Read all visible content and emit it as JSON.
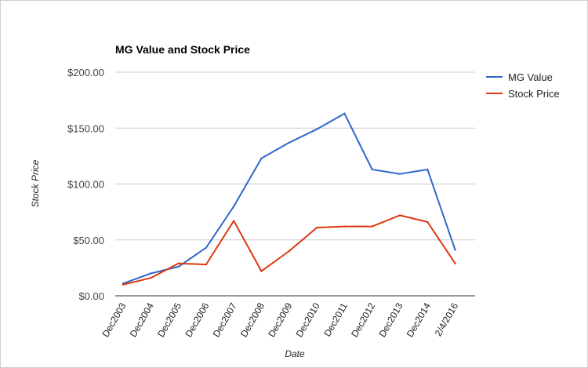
{
  "chart_data": {
    "type": "line",
    "title": "MG Value and Stock Price",
    "xlabel": "Date",
    "ylabel": "Stock Price",
    "categories": [
      "Dec2003",
      "Dec2004",
      "Dec2005",
      "Dec2006",
      "Dec2007",
      "Dec2008",
      "Dec2009",
      "Dec2010",
      "Dec2011",
      "Dec2012",
      "Dec2013",
      "Dec2014",
      "2/4/2016"
    ],
    "y_ticks": [
      "$0.00",
      "$50.00",
      "$100.00",
      "$150.00",
      "$200.00"
    ],
    "ylim": [
      0,
      200
    ],
    "grid": true,
    "legend_position": "right",
    "series": [
      {
        "name": "MG Value",
        "color": "#3366cc",
        "values": [
          11,
          20,
          26,
          43,
          80,
          123,
          137,
          149,
          163,
          113,
          109,
          113,
          41
        ]
      },
      {
        "name": "Stock Price",
        "color": "#dc3912",
        "values": [
          10,
          16,
          29,
          28,
          67,
          22,
          40,
          61,
          62,
          62,
          72,
          66,
          29
        ]
      }
    ]
  }
}
